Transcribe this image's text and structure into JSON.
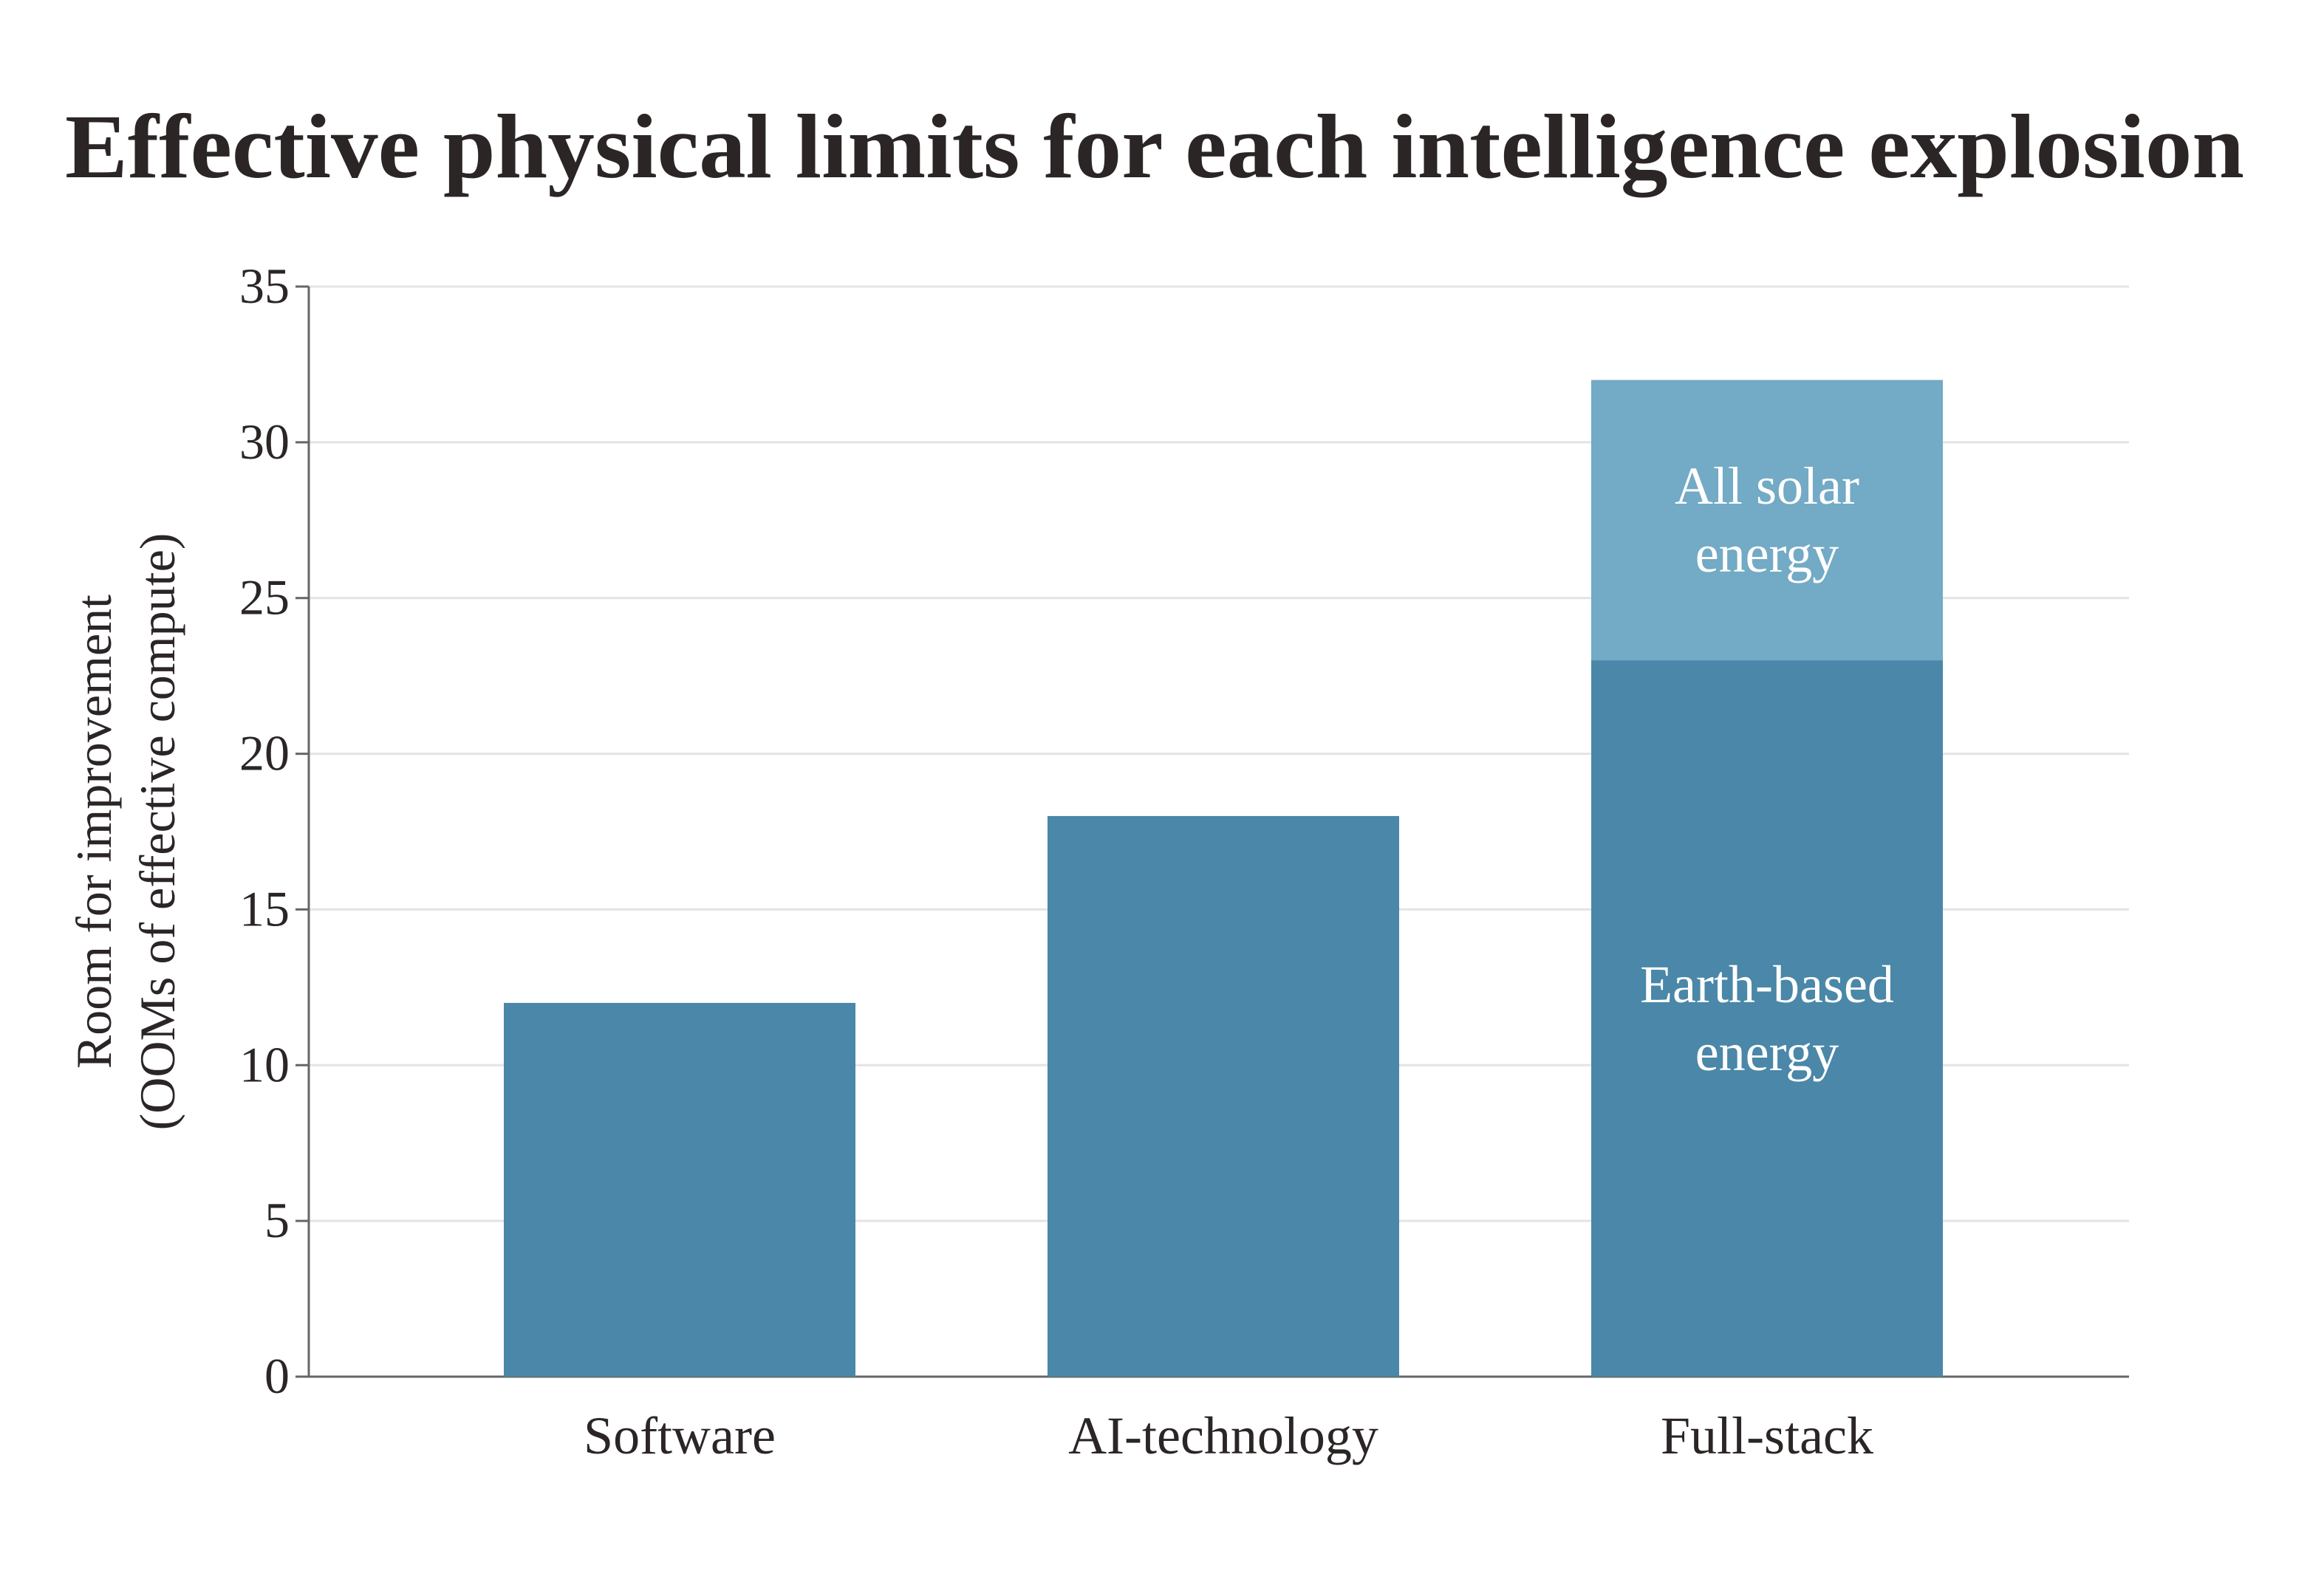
{
  "chart_data": {
    "type": "stacked_bar",
    "title": "Effective physical limits for each intelligence explosion",
    "ylabel": [
      "Room for improvement",
      "(OOMs of effective compute)"
    ],
    "categories": [
      "Software",
      "AI-technology",
      "Full-stack"
    ],
    "series": [
      {
        "name": "Earth-based energy",
        "color": "#4a87a8",
        "values": [
          12,
          18,
          23
        ]
      },
      {
        "name": "All solar energy",
        "color": "#73aac5",
        "values": [
          null,
          null,
          9
        ]
      }
    ],
    "ylim": [
      0,
      35
    ],
    "yticks": [
      0,
      5,
      10,
      15,
      20,
      25,
      30,
      35
    ],
    "grid": true
  }
}
